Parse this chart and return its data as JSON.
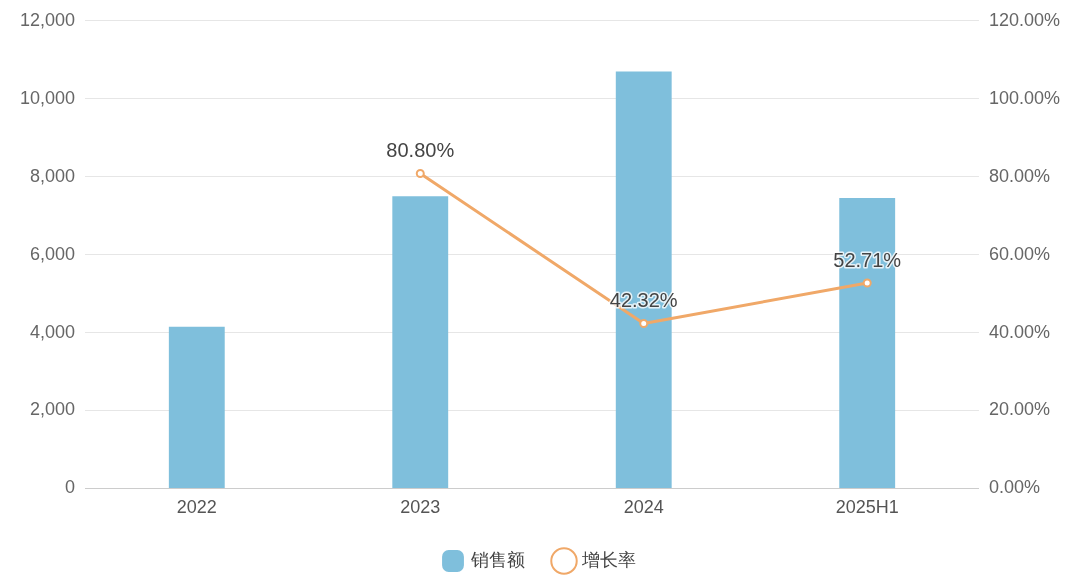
{
  "chart_data": {
    "type": "bar",
    "categories": [
      "2022",
      "2023",
      "2024",
      "2025H1"
    ],
    "series": [
      {
        "name": "销售额",
        "color": "#7fbfdc",
        "values": [
          4150,
          7500,
          10700,
          7450
        ]
      },
      {
        "name": "增长率",
        "type": "line",
        "axis": "y2",
        "color": "#f0a868",
        "values": [
          null,
          80.8,
          42.32,
          52.71
        ],
        "value_labels": [
          null,
          "80.80%",
          "42.32%",
          "52.71%"
        ]
      }
    ],
    "ylim": [
      0,
      12000
    ],
    "yticks": [
      {
        "value": 0,
        "label": "0"
      },
      {
        "value": 2000,
        "label": "2,000"
      },
      {
        "value": 4000,
        "label": "4,000"
      },
      {
        "value": 6000,
        "label": "6,000"
      },
      {
        "value": 8000,
        "label": "8,000"
      },
      {
        "value": 10000,
        "label": "10,000"
      },
      {
        "value": 12000,
        "label": "12,000"
      }
    ],
    "y2lim": [
      0,
      120
    ],
    "y2ticks": [
      {
        "value": 0,
        "label": "0.00%"
      },
      {
        "value": 20,
        "label": "20.00%"
      },
      {
        "value": 40,
        "label": "40.00%"
      },
      {
        "value": 60,
        "label": "60.00%"
      },
      {
        "value": 80,
        "label": "80.00%"
      },
      {
        "value": 100,
        "label": "100.00%"
      },
      {
        "value": 120,
        "label": "120.00%"
      }
    ],
    "grid": "y",
    "legend": "bottom",
    "marker": "circle",
    "line_style": "solid"
  }
}
